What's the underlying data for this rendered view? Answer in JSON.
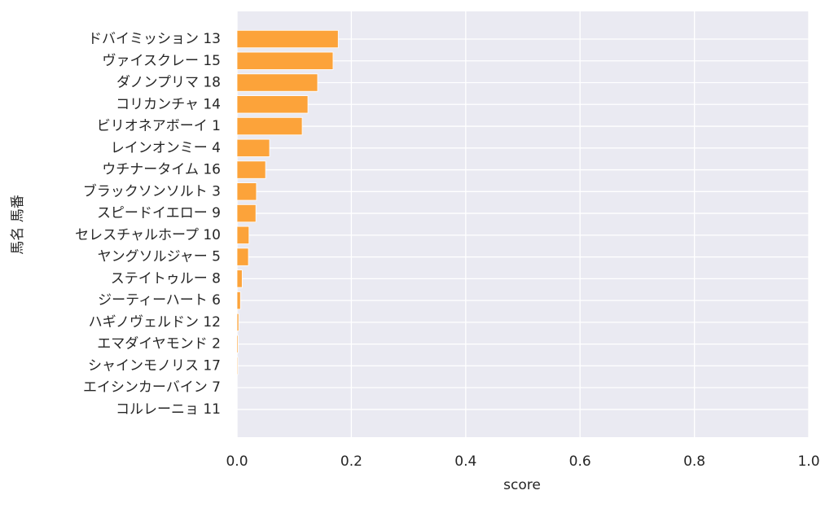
{
  "chart_data": {
    "type": "barh",
    "xlabel": "score",
    "ylabel": "馬名 馬番",
    "categories": [
      "ドバイミッション 13",
      "ヴァイスクレー 15",
      "ダノンプリマ 18",
      "コリカンチャ 14",
      "ビリオネアボーイ 1",
      "レインオンミー 4",
      "ウチナータイム 16",
      "ブラックソンソルト 3",
      "スピードイエロー 9",
      "セレスチャルホープ 10",
      "ヤングソルジャー 5",
      "ステイトゥルー 8",
      "ジーティーハート 6",
      "ハギノヴェルドン 12",
      "エマダイヤモンド 2",
      "シャインモノリス 17",
      "エイシンカーバイン 7",
      "コルレーニョ 11"
    ],
    "values": [
      0.177,
      0.168,
      0.141,
      0.124,
      0.114,
      0.057,
      0.05,
      0.034,
      0.033,
      0.021,
      0.02,
      0.009,
      0.006,
      0.003,
      0.002,
      0.0015,
      0,
      0
    ],
    "color": "#fca33a",
    "xlim": [
      0,
      1
    ],
    "xticks": [
      {
        "value": 0,
        "label": "0.0"
      },
      {
        "value": 0.2,
        "label": "0.2"
      },
      {
        "value": 0.4,
        "label": "0.4"
      },
      {
        "value": 0.6,
        "label": "0.6"
      },
      {
        "value": 0.8,
        "label": "0.8"
      },
      {
        "value": 1,
        "label": "1.0"
      }
    ],
    "grid": true
  }
}
